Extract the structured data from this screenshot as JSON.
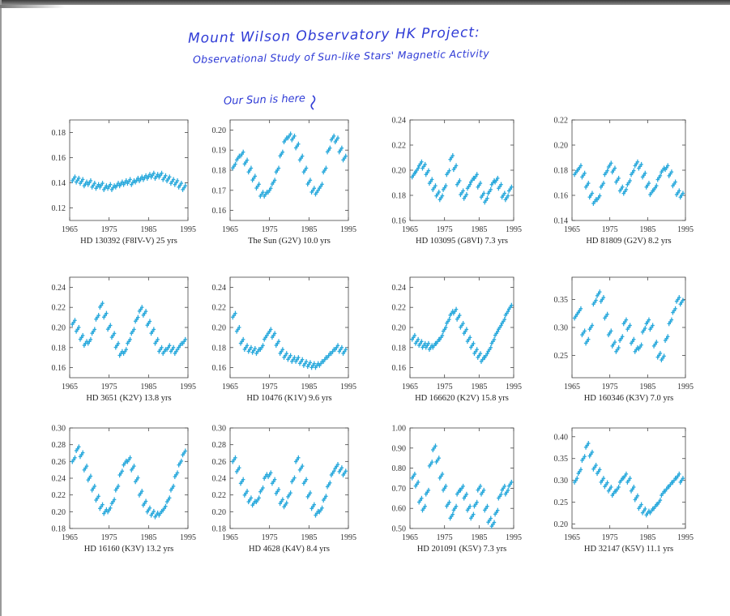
{
  "annotations": {
    "title_line1": "Mount Wilson Observatory HK Project:",
    "title_line2": "Observational Study of Sun-like Stars' Magnetic Activity",
    "sun_note": "Our Sun is here"
  },
  "colors": {
    "data_points": "#29a9dc",
    "handwriting": "#2f3bd6",
    "axes": "#444444"
  },
  "chart_data": [
    {
      "type": "scatter",
      "caption": "HD 130392 (F8IV-V) 25 yrs",
      "xlim": [
        1965,
        1995
      ],
      "xticks": [
        1965,
        1975,
        1985,
        1995
      ],
      "ylim": [
        0.11,
        0.19
      ],
      "yticks": [
        0.12,
        0.14,
        0.16,
        0.18
      ],
      "x": [
        1966,
        1967,
        1968,
        1969,
        1970,
        1971,
        1972,
        1973,
        1974,
        1975,
        1976,
        1977,
        1978,
        1979,
        1980,
        1981,
        1982,
        1983,
        1984,
        1985,
        1986,
        1987,
        1988,
        1989,
        1990,
        1991,
        1992,
        1993,
        1994
      ],
      "y": [
        0.143,
        0.142,
        0.141,
        0.139,
        0.14,
        0.138,
        0.137,
        0.138,
        0.136,
        0.137,
        0.136,
        0.138,
        0.139,
        0.14,
        0.141,
        0.14,
        0.142,
        0.143,
        0.144,
        0.145,
        0.146,
        0.145,
        0.146,
        0.144,
        0.143,
        0.141,
        0.14,
        0.138,
        0.136
      ]
    },
    {
      "type": "scatter",
      "caption": "The Sun (G2V) 10.0 yrs",
      "xlim": [
        1965,
        1995
      ],
      "xticks": [
        1965,
        1975,
        1985,
        1995
      ],
      "ylim": [
        0.155,
        0.205
      ],
      "yticks": [
        0.16,
        0.17,
        0.18,
        0.19,
        0.2
      ],
      "x": [
        1966,
        1967,
        1968,
        1969,
        1970,
        1971,
        1972,
        1973,
        1974,
        1975,
        1976,
        1977,
        1978,
        1979,
        1980,
        1981,
        1982,
        1983,
        1984,
        1985,
        1986,
        1987,
        1988,
        1989,
        1990,
        1991,
        1992,
        1993,
        1994
      ],
      "y": [
        0.182,
        0.186,
        0.188,
        0.184,
        0.18,
        0.176,
        0.172,
        0.168,
        0.168,
        0.17,
        0.174,
        0.18,
        0.188,
        0.195,
        0.197,
        0.196,
        0.192,
        0.186,
        0.18,
        0.174,
        0.17,
        0.169,
        0.172,
        0.18,
        0.19,
        0.196,
        0.195,
        0.19,
        0.186
      ]
    },
    {
      "type": "scatter",
      "caption": "HD 103095 (G8VI) 7.3 yrs",
      "xlim": [
        1965,
        1995
      ],
      "xticks": [
        1965,
        1975,
        1985,
        1995
      ],
      "ylim": [
        0.16,
        0.24
      ],
      "yticks": [
        0.16,
        0.18,
        0.2,
        0.22,
        0.24
      ],
      "x": [
        1966,
        1967,
        1968,
        1969,
        1970,
        1971,
        1972,
        1973,
        1974,
        1975,
        1976,
        1977,
        1978,
        1979,
        1980,
        1981,
        1982,
        1983,
        1984,
        1985,
        1986,
        1987,
        1988,
        1989,
        1990,
        1991,
        1992,
        1993,
        1994
      ],
      "y": [
        0.196,
        0.2,
        0.205,
        0.203,
        0.198,
        0.191,
        0.186,
        0.181,
        0.178,
        0.186,
        0.198,
        0.21,
        0.202,
        0.19,
        0.182,
        0.179,
        0.187,
        0.192,
        0.195,
        0.188,
        0.18,
        0.176,
        0.183,
        0.19,
        0.192,
        0.187,
        0.18,
        0.178,
        0.185
      ]
    },
    {
      "type": "scatter",
      "caption": "HD 81809 (G2V) 8.2 yrs",
      "xlim": [
        1965,
        1995
      ],
      "xticks": [
        1965,
        1975,
        1985,
        1995
      ],
      "ylim": [
        0.14,
        0.22
      ],
      "yticks": [
        0.14,
        0.16,
        0.18,
        0.2,
        0.22
      ],
      "x": [
        1966,
        1967,
        1968,
        1969,
        1970,
        1971,
        1972,
        1973,
        1974,
        1975,
        1976,
        1977,
        1978,
        1979,
        1980,
        1981,
        1982,
        1983,
        1984,
        1985,
        1986,
        1987,
        1988,
        1989,
        1990,
        1991,
        1992,
        1993,
        1994
      ],
      "y": [
        0.178,
        0.182,
        0.176,
        0.168,
        0.16,
        0.155,
        0.158,
        0.168,
        0.178,
        0.184,
        0.18,
        0.172,
        0.165,
        0.163,
        0.17,
        0.178,
        0.185,
        0.183,
        0.176,
        0.168,
        0.162,
        0.166,
        0.174,
        0.18,
        0.182,
        0.177,
        0.169,
        0.162,
        0.16
      ]
    },
    {
      "type": "scatter",
      "caption": "HD 3651 (K2V) 13.8 yrs",
      "xlim": [
        1965,
        1995
      ],
      "xticks": [
        1965,
        1975,
        1985,
        1995
      ],
      "ylim": [
        0.15,
        0.25
      ],
      "yticks": [
        0.16,
        0.18,
        0.2,
        0.22,
        0.24
      ],
      "x": [
        1966,
        1967,
        1968,
        1969,
        1970,
        1971,
        1972,
        1973,
        1974,
        1975,
        1976,
        1977,
        1978,
        1979,
        1980,
        1981,
        1982,
        1983,
        1984,
        1985,
        1986,
        1987,
        1988,
        1989,
        1990,
        1991,
        1992,
        1993,
        1994
      ],
      "y": [
        0.205,
        0.198,
        0.19,
        0.184,
        0.186,
        0.196,
        0.21,
        0.222,
        0.212,
        0.2,
        0.192,
        0.182,
        0.174,
        0.176,
        0.186,
        0.196,
        0.208,
        0.218,
        0.214,
        0.204,
        0.196,
        0.186,
        0.178,
        0.176,
        0.18,
        0.178,
        0.176,
        0.182,
        0.186
      ]
    },
    {
      "type": "scatter",
      "caption": "HD 10476 (K1V) 9.6 yrs",
      "xlim": [
        1965,
        1995
      ],
      "xticks": [
        1965,
        1975,
        1985,
        1995
      ],
      "ylim": [
        0.15,
        0.25
      ],
      "yticks": [
        0.16,
        0.18,
        0.2,
        0.22,
        0.24
      ],
      "x": [
        1966,
        1967,
        1968,
        1969,
        1970,
        1971,
        1972,
        1973,
        1974,
        1975,
        1976,
        1977,
        1978,
        1979,
        1980,
        1981,
        1982,
        1983,
        1984,
        1985,
        1986,
        1987,
        1988,
        1989,
        1990,
        1991,
        1992,
        1993,
        1994
      ],
      "y": [
        0.212,
        0.198,
        0.186,
        0.18,
        0.178,
        0.177,
        0.176,
        0.18,
        0.19,
        0.196,
        0.192,
        0.184,
        0.176,
        0.172,
        0.17,
        0.168,
        0.168,
        0.166,
        0.164,
        0.163,
        0.162,
        0.162,
        0.164,
        0.168,
        0.172,
        0.176,
        0.18,
        0.178,
        0.176
      ]
    },
    {
      "type": "scatter",
      "caption": "HD 166620 (K2V) 15.8 yrs",
      "xlim": [
        1965,
        1995
      ],
      "xticks": [
        1965,
        1975,
        1985,
        1995
      ],
      "ylim": [
        0.15,
        0.25
      ],
      "yticks": [
        0.16,
        0.18,
        0.2,
        0.22,
        0.24
      ],
      "x": [
        1966,
        1967,
        1968,
        1969,
        1970,
        1971,
        1972,
        1973,
        1974,
        1975,
        1976,
        1977,
        1978,
        1979,
        1980,
        1981,
        1982,
        1983,
        1984,
        1985,
        1986,
        1987,
        1988,
        1989,
        1990,
        1991,
        1992,
        1993,
        1994
      ],
      "y": [
        0.19,
        0.186,
        0.184,
        0.182,
        0.182,
        0.18,
        0.182,
        0.186,
        0.19,
        0.198,
        0.206,
        0.214,
        0.216,
        0.21,
        0.202,
        0.196,
        0.188,
        0.182,
        0.176,
        0.172,
        0.168,
        0.172,
        0.178,
        0.186,
        0.194,
        0.2,
        0.206,
        0.214,
        0.22
      ]
    },
    {
      "type": "scatter",
      "caption": "HD 160346 (K3V) 7.0 yrs",
      "xlim": [
        1965,
        1995
      ],
      "xticks": [
        1965,
        1975,
        1985,
        1995
      ],
      "ylim": [
        0.21,
        0.39
      ],
      "yticks": [
        0.25,
        0.3,
        0.35
      ],
      "x": [
        1966,
        1967,
        1968,
        1969,
        1970,
        1971,
        1972,
        1973,
        1974,
        1975,
        1976,
        1977,
        1978,
        1979,
        1980,
        1981,
        1982,
        1983,
        1984,
        1985,
        1986,
        1987,
        1988,
        1989,
        1990,
        1991,
        1992,
        1993,
        1994
      ],
      "y": [
        0.32,
        0.33,
        0.29,
        0.275,
        0.3,
        0.345,
        0.36,
        0.35,
        0.32,
        0.29,
        0.27,
        0.26,
        0.28,
        0.31,
        0.3,
        0.275,
        0.26,
        0.265,
        0.295,
        0.31,
        0.3,
        0.27,
        0.25,
        0.245,
        0.28,
        0.31,
        0.33,
        0.35,
        0.345
      ]
    },
    {
      "type": "scatter",
      "caption": "HD 16160 (K3V) 13.2 yrs",
      "xlim": [
        1965,
        1995
      ],
      "xticks": [
        1965,
        1975,
        1985,
        1995
      ],
      "ylim": [
        0.18,
        0.3
      ],
      "yticks": [
        0.18,
        0.2,
        0.22,
        0.24,
        0.26,
        0.28,
        0.3
      ],
      "x": [
        1966,
        1967,
        1968,
        1969,
        1970,
        1971,
        1972,
        1973,
        1974,
        1975,
        1976,
        1977,
        1978,
        1979,
        1980,
        1981,
        1982,
        1983,
        1984,
        1985,
        1986,
        1987,
        1988,
        1989,
        1990,
        1991,
        1992,
        1993,
        1994
      ],
      "y": [
        0.262,
        0.275,
        0.268,
        0.252,
        0.24,
        0.228,
        0.216,
        0.206,
        0.2,
        0.202,
        0.212,
        0.228,
        0.246,
        0.258,
        0.262,
        0.252,
        0.238,
        0.222,
        0.21,
        0.202,
        0.198,
        0.196,
        0.198,
        0.204,
        0.214,
        0.228,
        0.244,
        0.258,
        0.27
      ]
    },
    {
      "type": "scatter",
      "caption": "HD 4628 (K4V) 8.4 yrs",
      "xlim": [
        1965,
        1995
      ],
      "xticks": [
        1965,
        1975,
        1985,
        1995
      ],
      "ylim": [
        0.18,
        0.3
      ],
      "yticks": [
        0.18,
        0.2,
        0.22,
        0.24,
        0.26,
        0.28,
        0.3
      ],
      "x": [
        1966,
        1967,
        1968,
        1969,
        1970,
        1971,
        1972,
        1973,
        1974,
        1975,
        1976,
        1977,
        1978,
        1979,
        1980,
        1981,
        1982,
        1983,
        1984,
        1985,
        1986,
        1987,
        1988,
        1989,
        1990,
        1991,
        1992,
        1993,
        1994
      ],
      "y": [
        0.262,
        0.25,
        0.236,
        0.222,
        0.214,
        0.21,
        0.214,
        0.226,
        0.242,
        0.244,
        0.236,
        0.224,
        0.212,
        0.208,
        0.22,
        0.238,
        0.262,
        0.252,
        0.236,
        0.22,
        0.206,
        0.198,
        0.202,
        0.216,
        0.232,
        0.246,
        0.254,
        0.25,
        0.246
      ]
    },
    {
      "type": "scatter",
      "caption": "HD 201091 (K5V) 7.3 yrs",
      "xlim": [
        1965,
        1995
      ],
      "xticks": [
        1965,
        1975,
        1985,
        1995
      ],
      "ylim": [
        0.5,
        1.0
      ],
      "yticks": [
        0.5,
        0.6,
        0.7,
        0.8,
        0.9,
        1.0
      ],
      "x": [
        1966,
        1967,
        1968,
        1969,
        1970,
        1971,
        1972,
        1973,
        1974,
        1975,
        1976,
        1977,
        1978,
        1979,
        1980,
        1981,
        1982,
        1983,
        1984,
        1985,
        1986,
        1987,
        1988,
        1989,
        1990,
        1991,
        1992,
        1993,
        1994
      ],
      "y": [
        0.76,
        0.72,
        0.64,
        0.6,
        0.68,
        0.82,
        0.9,
        0.84,
        0.76,
        0.7,
        0.62,
        0.56,
        0.6,
        0.68,
        0.7,
        0.66,
        0.6,
        0.56,
        0.62,
        0.7,
        0.68,
        0.6,
        0.54,
        0.52,
        0.58,
        0.66,
        0.7,
        0.68,
        0.72
      ]
    },
    {
      "type": "scatter",
      "caption": "HD 32147 (K5V) 11.1 yrs",
      "xlim": [
        1965,
        1995
      ],
      "xticks": [
        1965,
        1975,
        1985,
        1995
      ],
      "ylim": [
        0.19,
        0.42
      ],
      "yticks": [
        0.2,
        0.25,
        0.3,
        0.35,
        0.4
      ],
      "x": [
        1966,
        1967,
        1968,
        1969,
        1970,
        1971,
        1972,
        1973,
        1974,
        1975,
        1976,
        1977,
        1978,
        1979,
        1980,
        1981,
        1982,
        1983,
        1984,
        1985,
        1986,
        1987,
        1988,
        1989,
        1990,
        1991,
        1992,
        1993,
        1994
      ],
      "y": [
        0.3,
        0.32,
        0.35,
        0.38,
        0.36,
        0.33,
        0.32,
        0.3,
        0.29,
        0.28,
        0.27,
        0.28,
        0.3,
        0.31,
        0.3,
        0.28,
        0.26,
        0.24,
        0.23,
        0.225,
        0.23,
        0.24,
        0.25,
        0.27,
        0.28,
        0.29,
        0.3,
        0.31,
        0.3
      ]
    }
  ]
}
